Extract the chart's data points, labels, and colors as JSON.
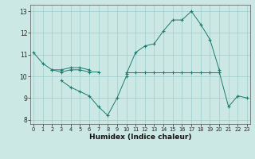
{
  "xlabel": "Humidex (Indice chaleur)",
  "x": [
    0,
    1,
    2,
    3,
    4,
    5,
    6,
    7,
    8,
    9,
    10,
    11,
    12,
    13,
    14,
    15,
    16,
    17,
    18,
    19,
    20,
    21,
    22,
    23
  ],
  "line1": [
    11.1,
    10.6,
    10.3,
    10.3,
    10.4,
    10.4,
    10.3,
    null,
    null,
    null,
    10.1,
    11.1,
    11.4,
    11.5,
    12.1,
    12.6,
    12.6,
    13.0,
    12.4,
    11.7,
    10.3,
    null,
    null,
    null
  ],
  "line2": [
    null,
    null,
    10.3,
    10.2,
    10.3,
    10.3,
    10.2,
    10.2,
    null,
    null,
    10.2,
    10.2,
    10.2,
    10.2,
    10.2,
    10.2,
    10.2,
    10.2,
    10.2,
    10.2,
    10.2,
    null,
    null,
    null
  ],
  "line3": [
    null,
    null,
    null,
    9.8,
    9.5,
    9.3,
    9.1,
    8.6,
    8.2,
    9.0,
    10.0,
    null,
    null,
    null,
    null,
    null,
    null,
    null,
    null,
    null,
    null,
    null,
    null,
    null
  ],
  "line4": [
    null,
    null,
    null,
    null,
    null,
    null,
    null,
    null,
    null,
    null,
    null,
    null,
    null,
    null,
    null,
    null,
    null,
    null,
    null,
    null,
    10.2,
    8.6,
    9.1,
    9.0
  ],
  "ylim": [
    7.8,
    13.3
  ],
  "xlim": [
    -0.3,
    23.3
  ],
  "yticks": [
    8,
    9,
    10,
    11,
    12,
    13
  ],
  "xticks": [
    0,
    1,
    2,
    3,
    4,
    5,
    6,
    7,
    8,
    9,
    10,
    11,
    12,
    13,
    14,
    15,
    16,
    17,
    18,
    19,
    20,
    21,
    22,
    23
  ],
  "line_color": "#1a7a6e",
  "bg_color": "#cce8e5",
  "grid_color": "#9ececa",
  "axis_bg": "#cce8e5"
}
